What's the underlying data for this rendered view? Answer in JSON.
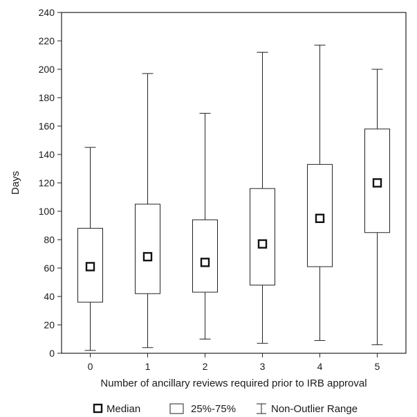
{
  "chart_data": {
    "type": "boxplot",
    "xlabel": "Number of ancillary reviews required prior to IRB approval",
    "ylabel": "Days",
    "ylim": [
      0,
      240
    ],
    "yticks": [
      0,
      20,
      40,
      60,
      80,
      100,
      120,
      140,
      160,
      180,
      200,
      220,
      240
    ],
    "categories": [
      "0",
      "1",
      "2",
      "3",
      "4",
      "5"
    ],
    "boxes": [
      {
        "category": "0",
        "min": 2,
        "q1": 36,
        "median": 61,
        "q3": 88,
        "max": 145
      },
      {
        "category": "1",
        "min": 4,
        "q1": 42,
        "median": 68,
        "q3": 105,
        "max": 197
      },
      {
        "category": "2",
        "min": 10,
        "q1": 43,
        "median": 64,
        "q3": 94,
        "max": 169
      },
      {
        "category": "3",
        "min": 7,
        "q1": 48,
        "median": 77,
        "q3": 116,
        "max": 212
      },
      {
        "category": "4",
        "min": 9,
        "q1": 61,
        "median": 95,
        "q3": 133,
        "max": 217
      },
      {
        "category": "5",
        "min": 6,
        "q1": 85,
        "median": 120,
        "q3": 158,
        "max": 200
      }
    ],
    "legend": [
      "Median",
      "25%-75%",
      "Non-Outlier Range"
    ],
    "legend_position": "bottom",
    "grid": false
  }
}
